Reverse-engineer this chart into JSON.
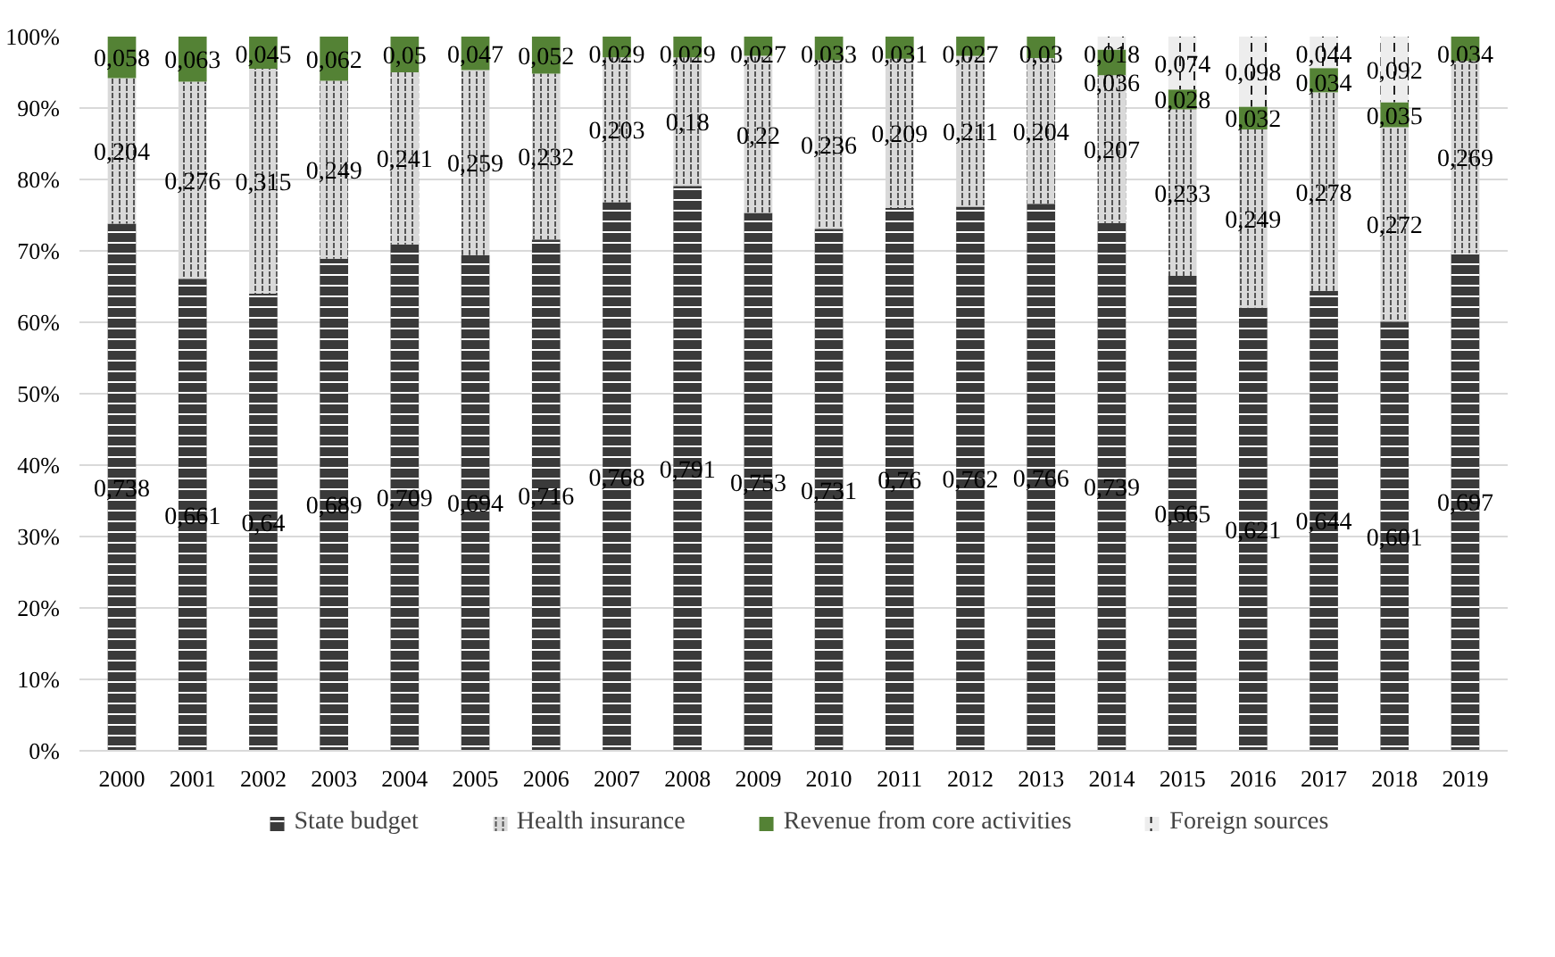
{
  "chart_data": {
    "type": "bar",
    "stacked": true,
    "categories": [
      "2000",
      "2001",
      "2002",
      "2003",
      "2004",
      "2005",
      "2006",
      "2007",
      "2008",
      "2009",
      "2010",
      "2011",
      "2012",
      "2013",
      "2014",
      "2015",
      "2016",
      "2017",
      "2018",
      "2019"
    ],
    "ylim": [
      0,
      1
    ],
    "yticks": [
      {
        "value": 0,
        "label": "0%"
      },
      {
        "value": 0.1,
        "label": "10%"
      },
      {
        "value": 0.2,
        "label": "20%"
      },
      {
        "value": 0.3,
        "label": "30%"
      },
      {
        "value": 0.4,
        "label": "40%"
      },
      {
        "value": 0.5,
        "label": "50%"
      },
      {
        "value": 0.6,
        "label": "60%"
      },
      {
        "value": 0.7,
        "label": "70%"
      },
      {
        "value": 0.8,
        "label": "80%"
      },
      {
        "value": 0.9,
        "label": "90%"
      },
      {
        "value": 1,
        "label": "100%"
      }
    ],
    "grid": "y",
    "legend": "bottom",
    "series": [
      {
        "name": "State budget",
        "color": "#3a3a3a",
        "values": [
          0.738,
          0.661,
          0.64,
          0.689,
          0.709,
          0.694,
          0.716,
          0.768,
          0.791,
          0.753,
          0.731,
          0.76,
          0.762,
          0.766,
          0.739,
          0.665,
          0.621,
          0.644,
          0.601,
          0.697
        ],
        "value_labels": [
          "0,738",
          "0,661",
          "0,64",
          "0,689",
          "0,709",
          "0,694",
          "0,716",
          "0,768",
          "0,791",
          "0,753",
          "0,731",
          "0,76",
          "0,762",
          "0,766",
          "0,739",
          "0,665",
          "0,621",
          "0,644",
          "0,601",
          "0,697"
        ]
      },
      {
        "name": "Health insurance",
        "color": "#d9d9d9",
        "values": [
          0.204,
          0.276,
          0.315,
          0.249,
          0.241,
          0.259,
          0.232,
          0.203,
          0.18,
          0.22,
          0.236,
          0.209,
          0.211,
          0.204,
          0.207,
          0.233,
          0.249,
          0.278,
          0.272,
          0.269
        ],
        "value_labels": [
          "0,204",
          "0,276",
          "0,315",
          "0,249",
          "0,241",
          "0,259",
          "0,232",
          "0,203",
          "0,18",
          "0,22",
          "0,236",
          "0,209",
          "0,211",
          "0,204",
          "0,207",
          "0,233",
          "0,249",
          "0,278",
          "0,272",
          "0,269"
        ]
      },
      {
        "name": "Revenue from core activities",
        "color": "#548235",
        "values": [
          0.058,
          0.063,
          0.045,
          0.062,
          0.05,
          0.047,
          0.052,
          0.029,
          0.029,
          0.027,
          0.033,
          0.031,
          0.027,
          0.03,
          0.036,
          0.028,
          0.032,
          0.034,
          0.035,
          0.034
        ],
        "value_labels": [
          "0,058",
          "0,063",
          "0,045",
          "0,062",
          "0,05",
          "0,047",
          "0,052",
          "0,029",
          "0,029",
          "0,027",
          "0,033",
          "0,031",
          "0,027",
          "0,03",
          "0,036",
          "0,028",
          "0,032",
          "0,034",
          "0,035",
          "0,034"
        ]
      },
      {
        "name": "Foreign sources",
        "color": "#ededed",
        "values": [
          null,
          null,
          null,
          null,
          null,
          null,
          null,
          null,
          null,
          null,
          null,
          null,
          null,
          null,
          0.018,
          0.074,
          0.098,
          0.044,
          0.092,
          null
        ],
        "value_labels": [
          null,
          null,
          null,
          null,
          null,
          null,
          null,
          null,
          null,
          null,
          null,
          null,
          null,
          null,
          "0,018",
          "0,074",
          "0,098",
          "0,044",
          "0,092",
          null
        ]
      }
    ]
  }
}
